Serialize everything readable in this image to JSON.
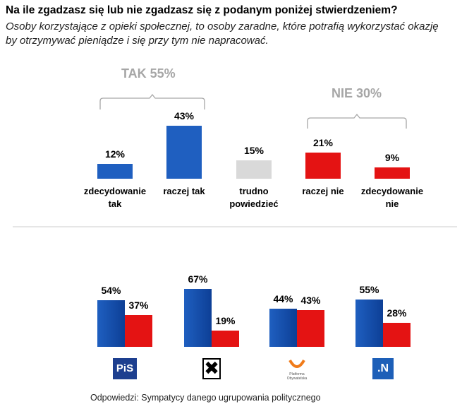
{
  "title": "Na ile zgadzasz się lub nie zgadzasz się z podanym poniżej stwierdzeniem?",
  "subtitle": "Osoby korzystające z opieki społecznej, to osoby zaradne, które potrafią wykorzystać okazję by otrzymywać pieniądze i się przy tym nie napracować.",
  "chart_data": [
    {
      "type": "bar",
      "categories": [
        "zdecydowanie tak",
        "raczej tak",
        "trudno powiedzieć",
        "raczej nie",
        "zdecydowanie nie"
      ],
      "values": [
        12,
        43,
        15,
        21,
        9
      ],
      "value_labels": [
        "12%",
        "43%",
        "15%",
        "21%",
        "9%"
      ],
      "colors": [
        "#1f5fc0",
        "#1f5fc0",
        "#d9d9d9",
        "#e41313",
        "#e41313"
      ],
      "annotations": [
        "TAK 55%",
        "NIE 30%"
      ]
    },
    {
      "type": "grouped_bar",
      "categories": [
        "PiS",
        null,
        "Platforma Obywatelska",
        ".N"
      ],
      "series": [
        {
          "color": "#1f5fc0",
          "values": [
            54,
            67,
            44,
            55
          ],
          "value_labels": [
            "54%",
            "67%",
            "44%",
            "55%"
          ]
        },
        {
          "color": "#e41313",
          "values": [
            37,
            19,
            43,
            28
          ],
          "value_labels": [
            "37%",
            "19%",
            "43%",
            "28%"
          ]
        }
      ]
    }
  ],
  "footer": "Odpowiedzi: Sympatycy danego ugrupowania politycznego"
}
